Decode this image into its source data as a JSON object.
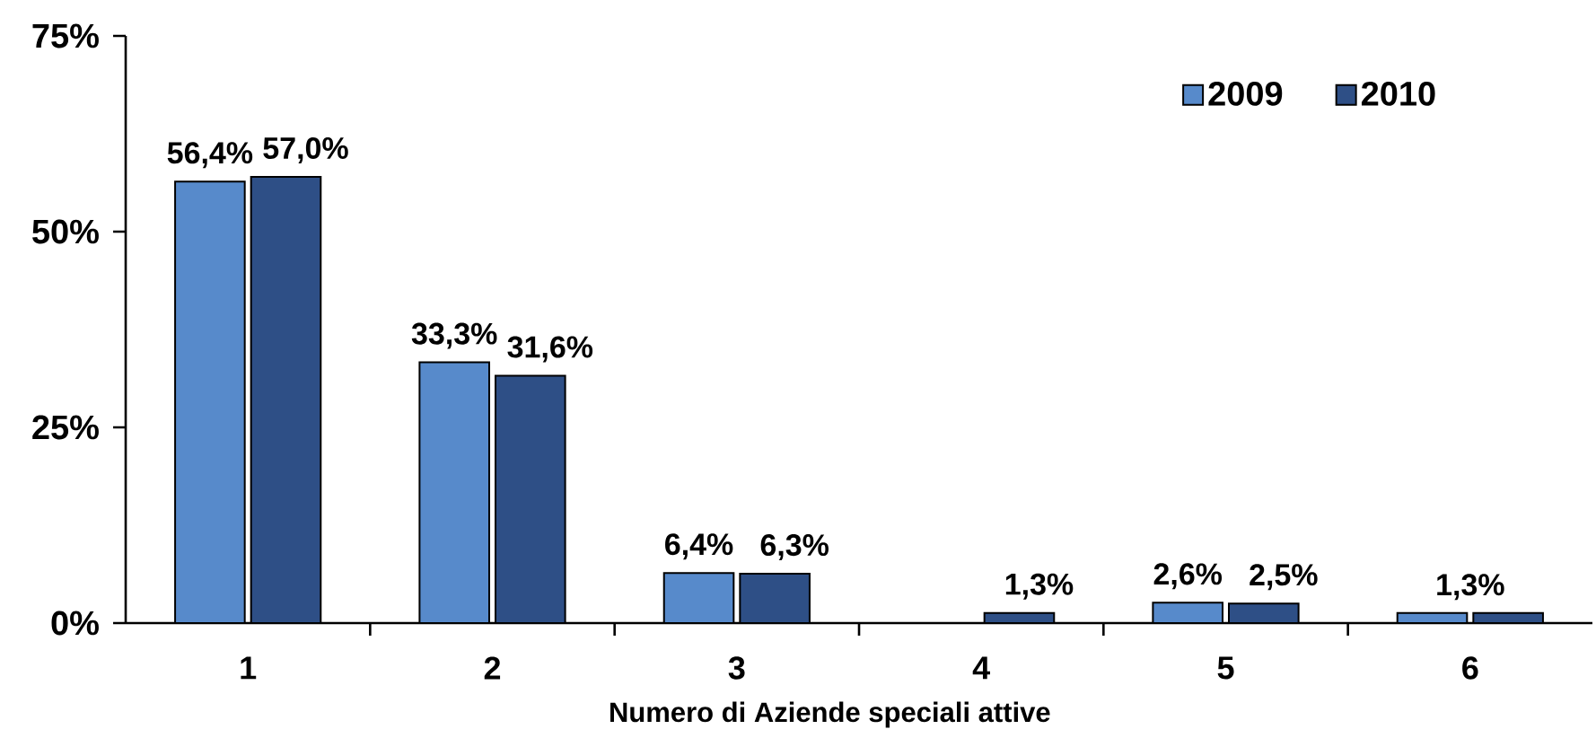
{
  "chart_data": {
    "type": "bar",
    "xlabel": "Numero di Aziende speciali attive",
    "categories": [
      "1",
      "2",
      "3",
      "4",
      "5",
      "6"
    ],
    "series": [
      {
        "name": "2009",
        "color": "#578ACB",
        "values": [
          56.4,
          33.3,
          6.4,
          null,
          2.6,
          1.3
        ],
        "value_labels": [
          "56,4%",
          "33,3%",
          "6,4%",
          null,
          "2,6%",
          null
        ]
      },
      {
        "name": "2010",
        "color": "#2E4F86",
        "values": [
          57.0,
          31.6,
          6.3,
          1.3,
          2.5,
          1.3
        ],
        "value_labels": [
          "57,0%",
          "31,6%",
          "6,3%",
          "1,3%",
          "2,5%",
          null
        ]
      }
    ],
    "ylim": [
      0,
      75
    ],
    "yticks": [
      {
        "value": 0,
        "label": "0%"
      },
      {
        "value": 25,
        "label": "25%"
      },
      {
        "value": 50,
        "label": "50%"
      },
      {
        "value": 75,
        "label": "75%"
      }
    ],
    "legend": "top right",
    "annotations": [
      {
        "text": "1,3%",
        "x": "6",
        "y": 1.3
      }
    ]
  }
}
